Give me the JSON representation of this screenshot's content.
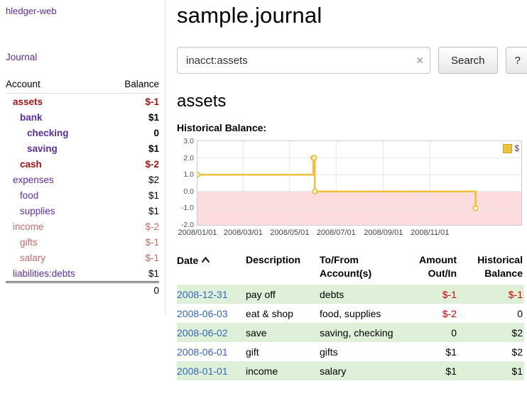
{
  "app": {
    "brand": "hledger-web",
    "nav": {
      "journal": "Journal"
    }
  },
  "sidebar": {
    "columns": {
      "account": "Account",
      "balance": "Balance"
    },
    "accounts": [
      {
        "name": "assets",
        "balance": "$-1",
        "depth": 1,
        "in_register": true,
        "negative": true
      },
      {
        "name": "bank",
        "balance": "$1",
        "depth": 2,
        "in_register": true,
        "negative": false
      },
      {
        "name": "checking",
        "balance": "0",
        "depth": 3,
        "in_register": true,
        "negative": false
      },
      {
        "name": "saving",
        "balance": "$1",
        "depth": 3,
        "in_register": true,
        "negative": false
      },
      {
        "name": "cash",
        "balance": "$-2",
        "depth": 2,
        "in_register": true,
        "negative": true
      },
      {
        "name": "expenses",
        "balance": "$2",
        "depth": 1,
        "in_register": false,
        "negative": false
      },
      {
        "name": "food",
        "balance": "$1",
        "depth": 2,
        "in_register": false,
        "negative": false
      },
      {
        "name": "supplies",
        "balance": "$1",
        "depth": 2,
        "in_register": false,
        "negative": false
      },
      {
        "name": "income",
        "balance": "$-2",
        "depth": 1,
        "in_register": false,
        "negative": true
      },
      {
        "name": "gifts",
        "balance": "$-1",
        "depth": 2,
        "in_register": false,
        "negative": true
      },
      {
        "name": "salary",
        "balance": "$-1",
        "depth": 2,
        "in_register": false,
        "negative": true
      },
      {
        "name": "liabilities:debts",
        "balance": "$1",
        "depth": 1,
        "in_register": false,
        "negative": false
      }
    ],
    "total": "0"
  },
  "header": {
    "title": "sample.journal"
  },
  "search": {
    "value": "inacct:assets",
    "clear_icon": "×",
    "search_button": "Search",
    "help_button": "?"
  },
  "account_page": {
    "title": "assets",
    "chart_title": "Historical Balance:"
  },
  "chart_data": {
    "type": "line",
    "style": "step",
    "title": "Historical Balance",
    "series": [
      {
        "name": "$",
        "points": [
          {
            "date": "2008-01-01",
            "day": 0,
            "value": 1
          },
          {
            "date": "2008-06-01",
            "day": 152,
            "value": 2
          },
          {
            "date": "2008-06-02",
            "day": 153,
            "value": 2
          },
          {
            "date": "2008-06-03",
            "day": 154,
            "value": 0
          },
          {
            "date": "2008-12-31",
            "day": 365,
            "value": -1
          }
        ]
      }
    ],
    "xlim": [
      0,
      425
    ],
    "ylim": [
      -2,
      3
    ],
    "yticks": [
      {
        "value": 3,
        "label": "3.0"
      },
      {
        "value": 2,
        "label": "2.0"
      },
      {
        "value": 1,
        "label": "1.0"
      },
      {
        "value": 0,
        "label": "0.0"
      },
      {
        "value": -1,
        "label": "-1.0"
      },
      {
        "value": -2,
        "label": "-2.0"
      }
    ],
    "xticks": [
      {
        "day": 0,
        "label": "2008/01/01"
      },
      {
        "day": 60,
        "label": "2008/03/01"
      },
      {
        "day": 121,
        "label": "2008/05/01"
      },
      {
        "day": 182,
        "label": "2008/07/01"
      },
      {
        "day": 244,
        "label": "2008/09/01"
      },
      {
        "day": 305,
        "label": "2008/11/01"
      }
    ],
    "legend": {
      "label": "$",
      "position": "top-right"
    },
    "colors": {
      "series": "#edc240",
      "negative_region": "#fcdcdc",
      "grid": "#e6e6e6"
    },
    "grid": true
  },
  "register": {
    "sort": {
      "column": "Date",
      "direction": "ascending"
    },
    "headers": {
      "date": "Date",
      "description": "Description",
      "account_line1": "To/From",
      "account_line2": "Account(s)",
      "amount_line1": "Amount",
      "amount_line2": "Out/In",
      "balance_line1": "Historical",
      "balance_line2": "Balance"
    },
    "rows": [
      {
        "date": "2008-12-31",
        "description": "pay off",
        "accounts": "debts",
        "amount": "$-1",
        "balance": "$-1"
      },
      {
        "date": "2008-06-03",
        "description": "eat & shop",
        "accounts": "food, supplies",
        "amount": "$-2",
        "balance": "0"
      },
      {
        "date": "2008-06-02",
        "description": "save",
        "accounts": "saving, checking",
        "amount": "0",
        "balance": "$2"
      },
      {
        "date": "2008-06-01",
        "description": "gift",
        "accounts": "gifts",
        "amount": "$1",
        "balance": "$2"
      },
      {
        "date": "2008-01-01",
        "description": "income",
        "accounts": "salary",
        "amount": "$1",
        "balance": "$1"
      }
    ]
  },
  "colors": {
    "link_purple": "#5b2da0",
    "link_blue": "#3366bb",
    "negative_strong": "#a31515",
    "negative_soft": "#c46b6b",
    "negative_amount": "#cc0000",
    "row_shade_green": "#dff0d8"
  }
}
